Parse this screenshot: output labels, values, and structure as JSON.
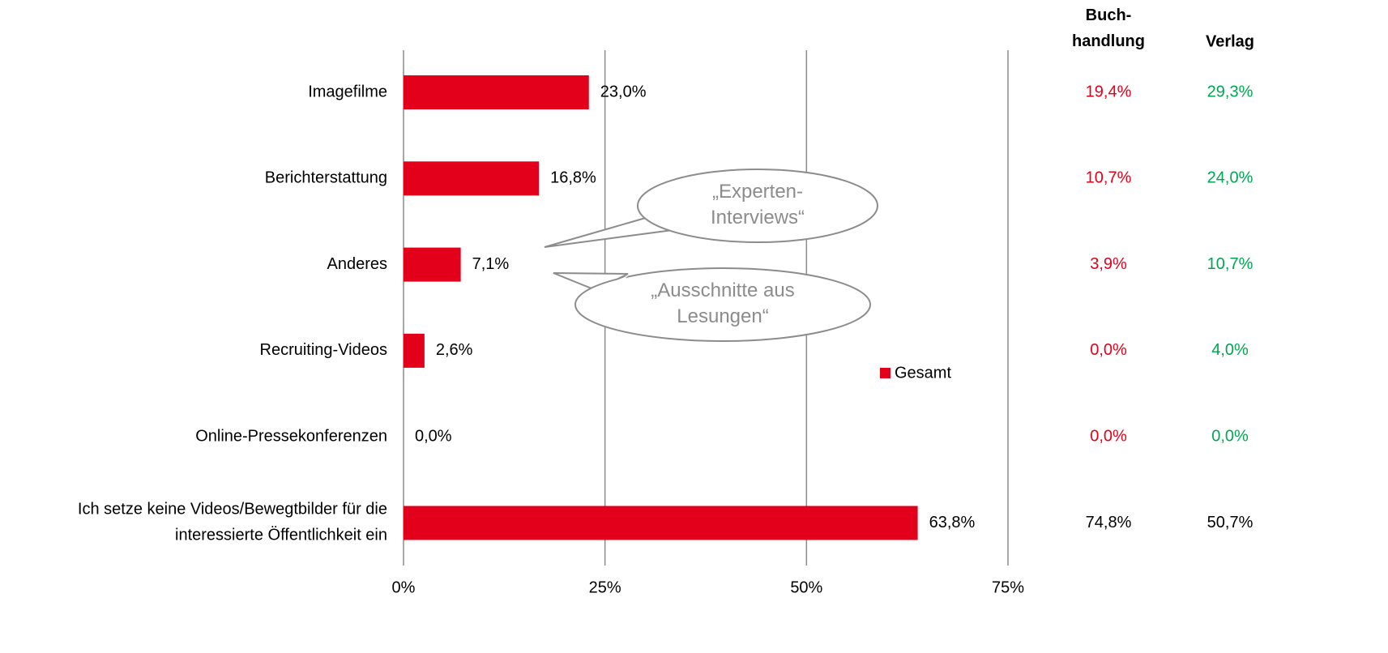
{
  "chart_data": {
    "type": "barh",
    "categories": [
      "Imagefilme",
      "Berichterstattung",
      "Anderes",
      "Recruiting-Videos",
      "Online-Pressekonferenzen",
      "Ich setze keine Videos/Bewegtbilder für die\ninteressierte Öffentlichkeit ein"
    ],
    "series": [
      {
        "name": "Gesamt",
        "color": "#e2001a",
        "values": [
          23.0,
          16.8,
          7.1,
          2.6,
          0.0,
          63.8
        ],
        "value_labels": [
          "23,0%",
          "16,8%",
          "7,1%",
          "2,6%",
          "0,0%",
          "63,8%"
        ]
      }
    ],
    "xlim": [
      0,
      75
    ],
    "xticks": [
      {
        "value": 0,
        "label": "0%"
      },
      {
        "value": 25,
        "label": "25%"
      },
      {
        "value": 50,
        "label": "50%"
      },
      {
        "value": 75,
        "label": "75%"
      }
    ],
    "grid": true,
    "annotations": [
      "„Experten-\nInterviews“",
      "„Ausschnitte aus\nLesungen“"
    ],
    "table": [
      {
        "header": "Buch-\nhandlung",
        "values": [
          19.4,
          10.7,
          3.9,
          0.0,
          0.0,
          74.8
        ],
        "value_labels": [
          "19,4%",
          "10,7%",
          "3,9%",
          "0,0%",
          "0,0%",
          "74,8%"
        ],
        "colors": [
          "#e2001a",
          "#e2001a",
          "#e2001a",
          "#e2001a",
          "#e2001a",
          "#000000"
        ]
      },
      {
        "header": "Verlag",
        "values": [
          29.3,
          24.0,
          10.7,
          4.0,
          0.0,
          50.7
        ],
        "value_labels": [
          "29,3%",
          "24,0%",
          "10,7%",
          "4,0%",
          "0,0%",
          "50,7%"
        ],
        "colors": [
          "#00a651",
          "#00a651",
          "#00a651",
          "#00a651",
          "#00a651",
          "#000000"
        ]
      }
    ]
  }
}
